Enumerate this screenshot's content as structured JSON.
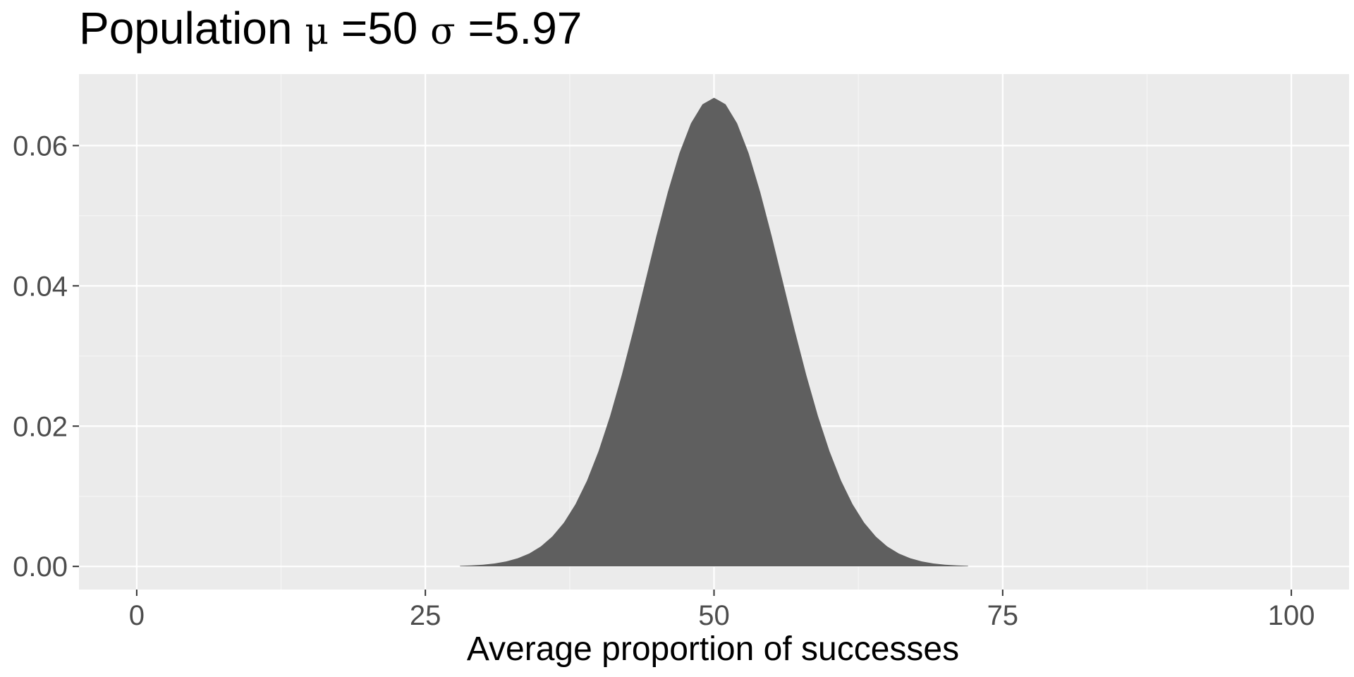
{
  "chart_data": {
    "type": "area",
    "title": {
      "prefix": "Population ",
      "mu_symbol": "μ",
      "mu_text": " =50 ",
      "sigma_symbol": "σ",
      "sigma_text": " =5.97"
    },
    "xlabel": "Average proportion of successes",
    "ylabel": "",
    "xlim": [
      -5,
      105
    ],
    "ylim": [
      -0.0033,
      0.0702
    ],
    "x_ticks": [
      0,
      25,
      50,
      75,
      100
    ],
    "x_tick_labels": [
      "0",
      "25",
      "50",
      "75",
      "100"
    ],
    "x_minor_ticks": [
      12.5,
      37.5,
      62.5,
      87.5
    ],
    "y_ticks": [
      0,
      0.02,
      0.04,
      0.06
    ],
    "y_tick_labels": [
      "0.00",
      "0.02",
      "0.04",
      "0.06"
    ],
    "y_minor_ticks": [
      0.01,
      0.03,
      0.05
    ],
    "grid": true,
    "legend": "none",
    "distribution": {
      "kind": "normal",
      "mean": 50,
      "sd": 5.97,
      "x_from": 28,
      "x_to": 72,
      "step": 1
    },
    "colors": {
      "panel_background": "#ebebeb",
      "grid_major": "#ffffff",
      "grid_minor": "#f6f6f6",
      "fill": "#5f5f5f",
      "tick_label": "#4d4d4d",
      "tick_mark": "#333333"
    }
  }
}
